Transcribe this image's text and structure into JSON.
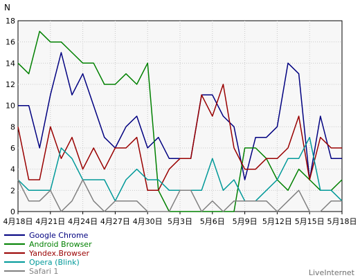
{
  "chart_data": {
    "type": "line",
    "ylabel": "N",
    "ylim": [
      0,
      18
    ],
    "ytick_step": 2,
    "grid": true,
    "legend_position": "bottom-left",
    "x_tick_labels": [
      "4月18日",
      "4月21日",
      "4月24日",
      "4月27日",
      "4月30日",
      "5月3日",
      "5月6日",
      "5月9日",
      "5月12日",
      "5月15日",
      "5月18日"
    ],
    "series": [
      {
        "name": "Google Chrome",
        "color": "#000080",
        "values": [
          10,
          10,
          6,
          11,
          15,
          11,
          13,
          10,
          7,
          6,
          8,
          9,
          6,
          7,
          5,
          5,
          5,
          11,
          11,
          9,
          8,
          3,
          7,
          7,
          8,
          14,
          13,
          3,
          9,
          5,
          5
        ]
      },
      {
        "name": "Android Browser",
        "color": "#008000",
        "values": [
          14,
          13,
          17,
          16,
          16,
          15,
          14,
          14,
          12,
          12,
          13,
          12,
          14,
          2,
          0,
          0,
          0,
          0,
          0,
          0,
          0,
          6,
          6,
          5,
          3,
          2,
          4,
          3,
          2,
          2,
          3
        ]
      },
      {
        "name": "Yandex.Browser",
        "color": "#990000",
        "values": [
          8,
          3,
          3,
          8,
          5,
          7,
          4,
          6,
          4,
          6,
          6,
          7,
          2,
          2,
          4,
          5,
          5,
          11,
          9,
          12,
          6,
          4,
          4,
          5,
          5,
          6,
          9,
          3,
          7,
          6,
          6
        ]
      },
      {
        "name": "Opera (Blink)",
        "color": "#009999",
        "values": [
          3,
          2,
          2,
          2,
          6,
          5,
          3,
          3,
          3,
          1,
          3,
          4,
          3,
          3,
          2,
          2,
          2,
          2,
          5,
          2,
          3,
          1,
          1,
          2,
          3,
          5,
          5,
          7,
          2,
          2,
          1
        ]
      },
      {
        "name": "Safari 1",
        "color": "#808080",
        "values": [
          3,
          1,
          1,
          2,
          0,
          1,
          3,
          1,
          0,
          1,
          1,
          1,
          0,
          0,
          0,
          2,
          2,
          0,
          1,
          0,
          1,
          1,
          1,
          1,
          0,
          1,
          2,
          0,
          0,
          1,
          1
        ]
      }
    ]
  },
  "brand": "LiveInternet"
}
